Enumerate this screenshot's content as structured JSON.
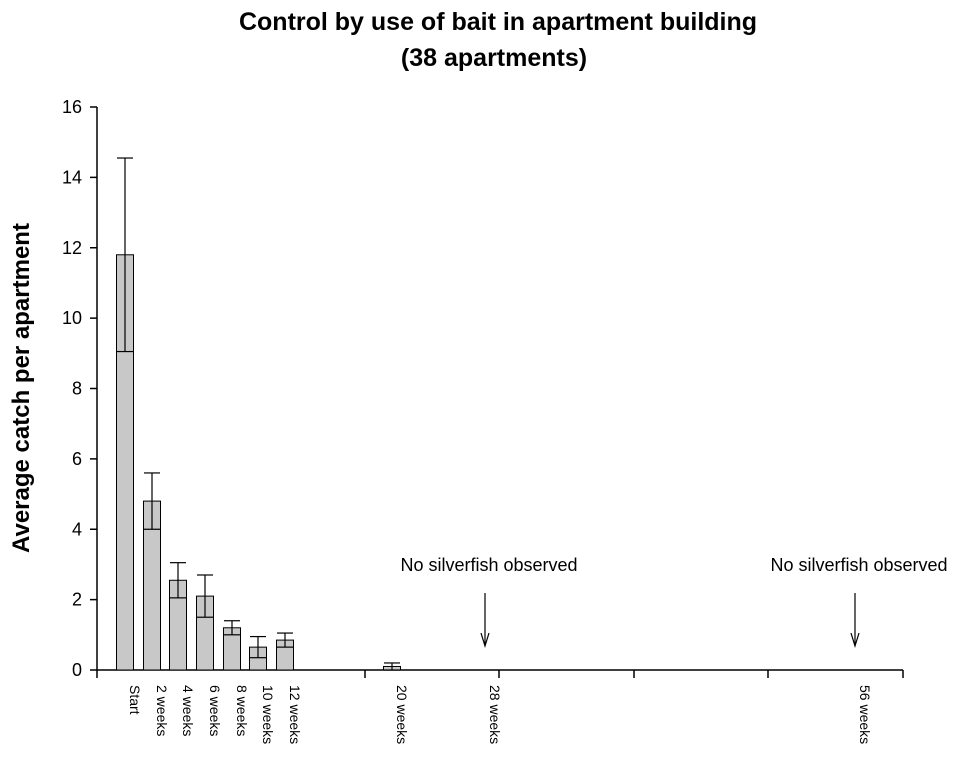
{
  "chart_data": {
    "type": "bar",
    "title_line1": "Control by use of bait in apartment building",
    "title_line2": "(38 apartments)",
    "ylabel": "Average catch per apartment",
    "xlabel": "",
    "ylim": [
      0,
      16
    ],
    "yticks": [
      "0",
      "2",
      "4",
      "6",
      "8",
      "10",
      "12",
      "14",
      "16"
    ],
    "categories": [
      "Start",
      "2 weeks",
      "4 weeks",
      "6 weeks",
      "8 weeks",
      "10 weeks",
      "12 weeks",
      "20 weeks",
      "28 weeks",
      "56 weeks"
    ],
    "values": [
      11.8,
      4.8,
      2.55,
      2.1,
      1.2,
      0.65,
      0.85,
      0.1,
      0,
      0
    ],
    "error_high": [
      14.55,
      5.6,
      3.05,
      2.7,
      1.4,
      0.95,
      1.05,
      0.2,
      null,
      null
    ],
    "error_low": [
      9.05,
      4.0,
      2.05,
      1.5,
      1.0,
      0.35,
      0.65,
      0.0,
      null,
      null
    ],
    "annotations": [
      {
        "text": "No silverfish observed",
        "category": "28 weeks"
      },
      {
        "text": "No silverfish observed",
        "category": "56 weeks"
      }
    ],
    "grid": false,
    "legend": "none"
  }
}
